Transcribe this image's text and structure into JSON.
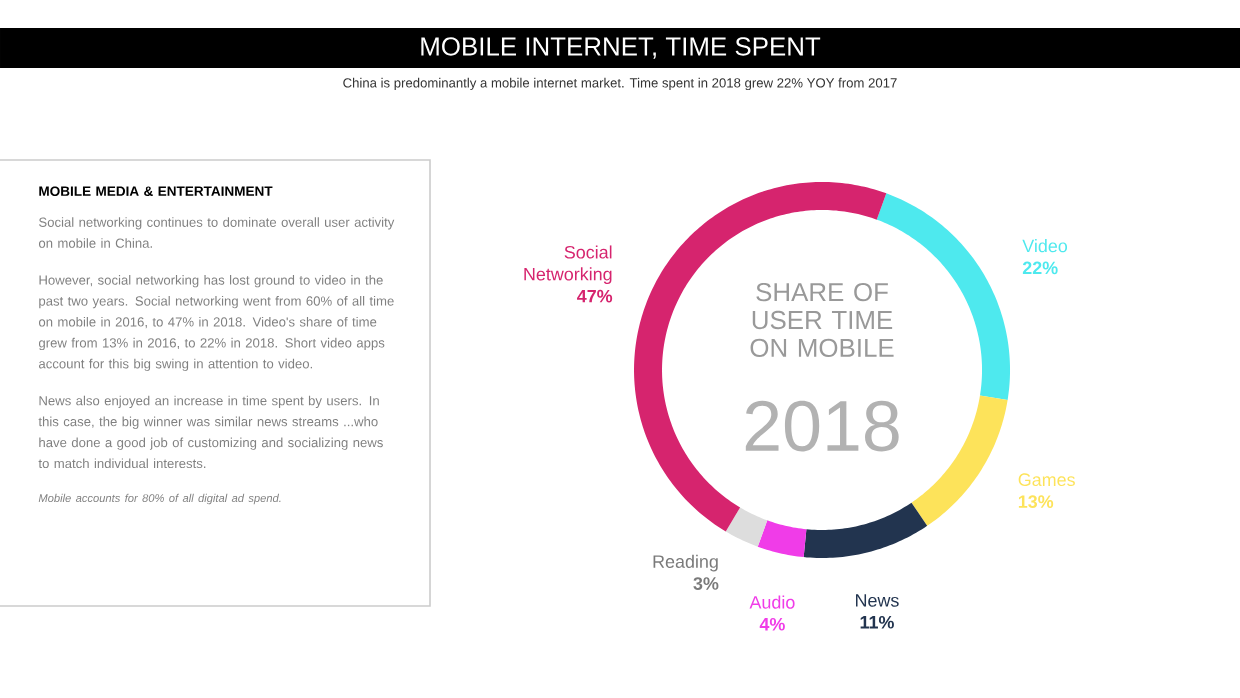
{
  "chart_data": [
    {
      "type": "donut",
      "title": "MOBILE INTERNET, TIME SPENT",
      "subtitle": "China is predominantly a mobile internet market. Time spent in 2018 grew 22% YOY from 2017",
      "categories": [
        "Video",
        "Games",
        "News",
        "Audio",
        "Reading",
        "Social Networking"
      ],
      "values": [
        22,
        13,
        11,
        4,
        3,
        47
      ],
      "value_labels": [
        "22%",
        "13%",
        "11%",
        "4%",
        "3%",
        "47%"
      ],
      "colors": [
        "#4ee9ee",
        "#fde35a",
        "#22344f",
        "#f03ce8",
        "#dddddd",
        "#d6246e"
      ],
      "annotations": [
        "SHARE OF USER TIME ON MOBILE",
        "2018"
      ]
    },
    {
      "type": "other",
      "title": "MOBILE MEDIA & ENTERTAINMENT",
      "annotations": [
        "Social networking continues to dominate overall user activity on mobile in China.",
        "However, social networking has lost ground to video in the past two years. Social networking went from 60% of all time on mobile in 2016, to 47% in 2018. Video's share of time grew from 13% in 2016, to 22% in 2018. Short video apps account for this big swing in attention to video.",
        "News also enjoyed an increase in time spent by users. In this case, the big winner was similar news streams ...who have done a good job of customizing and socializing news to match individual interests.",
        "Mobile accounts for 80% of all digital ad spend."
      ]
    }
  ]
}
